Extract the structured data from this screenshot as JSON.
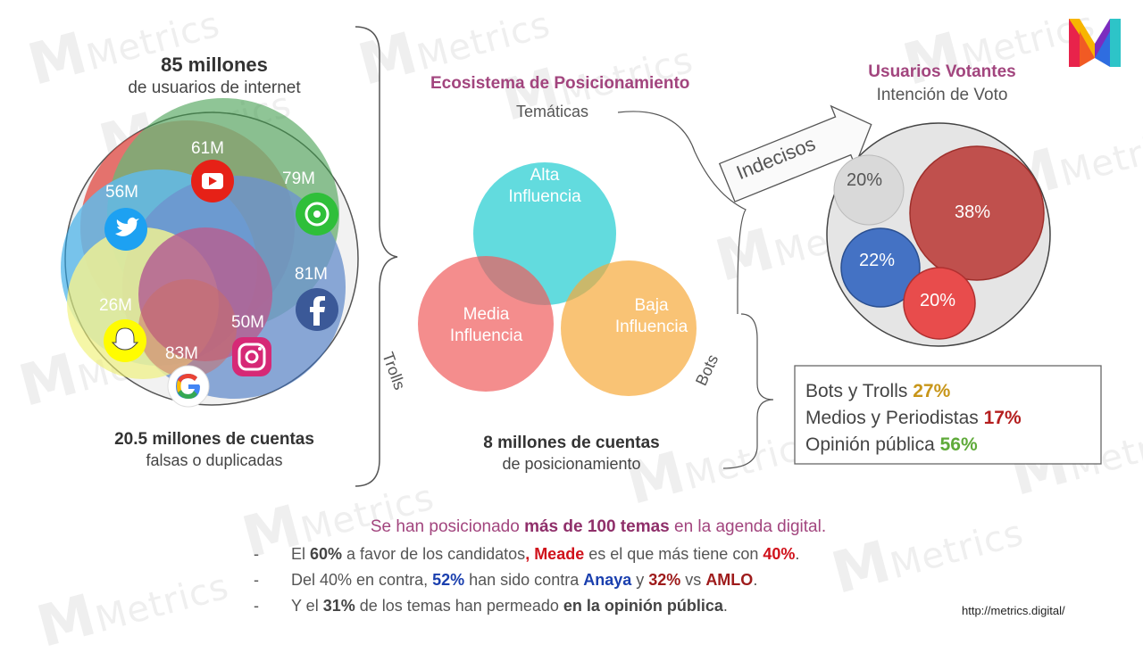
{
  "left": {
    "title_big": "85 millones",
    "title_sub": "de usuarios de internet",
    "footer_big": "20.5 millones de cuentas",
    "footer_sub": "falsas o duplicadas",
    "networks": [
      {
        "label": "61M",
        "icon": "youtube-icon"
      },
      {
        "label": "79M",
        "icon": "whatsapp-icon"
      },
      {
        "label": "56M",
        "icon": "twitter-icon"
      },
      {
        "label": "81M",
        "icon": "facebook-icon"
      },
      {
        "label": "26M",
        "icon": "snapchat-icon"
      },
      {
        "label": "50M",
        "icon": "instagram-icon"
      },
      {
        "label": "83M",
        "icon": "google-icon"
      }
    ]
  },
  "middle": {
    "title": "Ecosistema de Posicionamiento",
    "tematicas": "Temáticas",
    "trolls": "Trolls",
    "bots": "Bots",
    "alta_1": "Alta",
    "alta_2": "Influencia",
    "media_1": "Media",
    "media_2": "Influencia",
    "baja_1": "Baja",
    "baja_2": "Influencia",
    "footer_big": "8 millones de cuentas",
    "footer_sub": "de posicionamiento",
    "indecisos": "Indecisos"
  },
  "right": {
    "title": "Usuarios Votantes",
    "subtitle": "Intención de Voto",
    "bubbles": [
      {
        "label": "20%",
        "color": "#d9d9d9"
      },
      {
        "label": "38%",
        "color": "#c0504d"
      },
      {
        "label": "22%",
        "color": "#4472c4"
      },
      {
        "label": "20%",
        "color": "#e84c4c"
      }
    ],
    "breakdown": [
      {
        "label": "Bots y Trolls",
        "value": "27%",
        "color": "#c8961a"
      },
      {
        "label": "Medios y Periodistas",
        "value": "17%",
        "color": "#b41e1e"
      },
      {
        "label": "Opinión pública",
        "value": "56%",
        "color": "#5faa3a"
      }
    ]
  },
  "bottom": {
    "headline_a": "Se han posicionado ",
    "headline_b": "más de 100 temas",
    "headline_c": " en la agenda digital.",
    "dash": "-",
    "b1_a": "El ",
    "b1_b": "60%",
    "b1_c": " a favor de los candidatos",
    "b1_d": ", Meade",
    "b1_e": " es el que más tiene con ",
    "b1_f": "40%",
    "b1_g": ".",
    "b2_a": "Del 40% en contra, ",
    "b2_b": "52%",
    "b2_c": " han sido contra ",
    "b2_d": "Anaya",
    "b2_e": " y ",
    "b2_f": "32%",
    "b2_g": " vs ",
    "b2_h": "AMLO",
    "b2_i": ".",
    "b3_a": "Y el ",
    "b3_b": "31%",
    "b3_c": " de los temas han permeado ",
    "b3_d": "en la opinión pública",
    "b3_e": "."
  },
  "url": "http://metrics.digital/",
  "watermark": "Metrics"
}
